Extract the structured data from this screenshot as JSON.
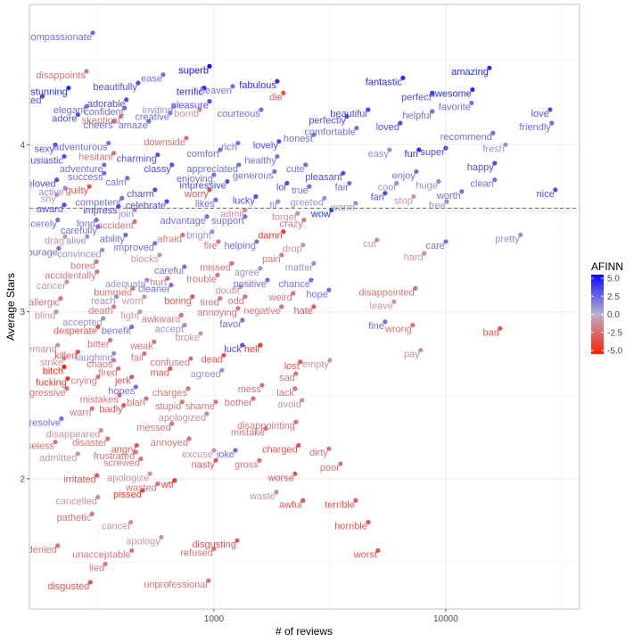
{
  "chart_data": {
    "type": "scatter",
    "xlabel": "# of reviews",
    "ylabel": "Average Stars",
    "log_x": true,
    "xlim": [
      160,
      37800
    ],
    "ylim": [
      1.22,
      4.84
    ],
    "xticks": [
      1000,
      10000
    ],
    "yticks": [
      2,
      3,
      4
    ],
    "grid": true,
    "hline": 3.62,
    "hline_color": "#e8412c",
    "legend_position": "right",
    "colorbar": {
      "title": "AFINN",
      "colors": [
        "#ff1a00",
        "#bbb0cc",
        "#0a0aff"
      ],
      "limits": [
        -5,
        5
      ],
      "ticks": [
        {
          "value": 5,
          "label": "5.0"
        },
        {
          "value": 2.5,
          "label": "2.5"
        },
        {
          "value": 0,
          "label": "0.0"
        },
        {
          "value": -2.5,
          "label": "-2.5"
        },
        {
          "value": -5,
          "label": "-5.0"
        }
      ]
    },
    "labels": [
      "compassionate",
      "superb",
      "disappoints",
      "ease",
      "beautifully",
      "fabulous",
      "fantastic",
      "amazing",
      "terrific",
      "heaven",
      "stunning",
      "awesome",
      "perfect",
      "delighted",
      "adorable",
      "pleasure",
      "die",
      "favorite",
      "elegant",
      "inviting",
      "courteous",
      "bomb",
      "skeptical",
      "creative",
      "beautiful",
      "helpful",
      "love",
      "adore",
      "cheers",
      "amaze",
      "perfectly",
      "loved",
      "friendly",
      "honest",
      "comfortable",
      "recommend",
      "confident",
      "downside",
      "sexy",
      "adventurous",
      "lovely",
      "fresh",
      "rich",
      "comfort",
      "hesitant",
      "enthusiastic",
      "easy",
      "fun",
      "super",
      "healthy",
      "charming",
      "happy",
      "calm",
      "appreciated",
      "adventure",
      "classy",
      "cute",
      "enjoy",
      "pleasant",
      "success",
      "enjoying",
      "generous",
      "huge",
      "clean",
      "beloved",
      "guilty",
      "impressive",
      "lol",
      "fair",
      "cool",
      "charm",
      "active",
      "worry",
      "nice",
      "true",
      "fan",
      "shy",
      "competent",
      "greeted",
      "worth",
      "lucky",
      "likes",
      "stop",
      "warm",
      "free",
      "award",
      "impress",
      "celebrate",
      "admit",
      "fit",
      "forget",
      "wow",
      "join",
      "advantage",
      "support",
      "crazy",
      "sincerely",
      "fond",
      "accident",
      "drop",
      "carefully",
      "bright",
      "damn",
      "pretty",
      "afraid",
      "drag",
      "alive",
      "ability",
      "cut",
      "care",
      "fire",
      "helping",
      "improved",
      "courage",
      "convinced",
      "pain",
      "hard",
      "blocks",
      "bored",
      "missed",
      "matter",
      "careful",
      "agree",
      "accidentally",
      "trouble",
      "hurt",
      "adequate",
      "positive",
      "chance",
      "cancer",
      "bummed",
      "cleaner",
      "doubt",
      "weird",
      "hope",
      "disappointed",
      "allergic",
      "reach",
      "worn",
      "boring",
      "tired",
      "odd",
      "leave",
      "negative",
      "hate",
      "blind",
      "death",
      "fight",
      "annoying",
      "awkward",
      "accepted",
      "favor",
      "fine",
      "wrong",
      "bad",
      "desperate",
      "benefit",
      "accept",
      "broke",
      "bitter",
      "weak",
      "luck",
      "hell",
      "demand",
      "pay",
      "laughing",
      "fail",
      "killed",
      "confused",
      "dead",
      "strike",
      "chaos",
      "empty",
      "lost",
      "bitch",
      "fired",
      "mad",
      "agreed",
      "sad",
      "jerk",
      "crying",
      "fucking",
      "aggressive",
      "hopes",
      "charges",
      "mess",
      "lack",
      "mistakes",
      "blah",
      "bother",
      "avoid",
      "resolve",
      "warn",
      "badly",
      "stupid",
      "shame",
      "apologized",
      "disappointing",
      "messed",
      "mistake",
      "disappeared",
      "annoyed",
      "disaster",
      "useless",
      "charged",
      "dirty",
      "angry",
      "excuse",
      "joke",
      "frustrated",
      "admitted",
      "screwed",
      "nasty",
      "gross",
      "poor",
      "irritated",
      "apologize",
      "worse",
      "wasted",
      "wtf",
      "pissed",
      "waste",
      "cancelled",
      "awful",
      "terrible",
      "pathetic",
      "horrible",
      "cancel",
      "apology",
      "disgusting",
      "denied",
      "unacceptable",
      "refused",
      "worst",
      "lied",
      "disgusted",
      "unprofessional"
    ],
    "x": [
      300,
      957,
      282,
      604,
      471,
      1875,
      6536,
      15430,
      907,
      1205,
      236,
      13041,
      8751,
      182,
      419,
      957,
      1994,
      12928,
      282,
      671,
      1599,
      868,
      397,
      648,
      4628,
      8751,
      28171,
      259,
      370,
      523,
      3742,
      6365,
      28678,
      2696,
      4124,
      15987,
      412,
      760,
      207,
      351,
      1908,
      18097,
      1270,
      1064,
      370,
      226,
      5723,
      7664,
      10000,
      1875,
      572,
      16268,
      423,
      1281,
      336,
      659,
      2488,
      7464,
      3610,
      336,
      1000,
      1825,
      9314,
      16268,
      210,
      290,
      1142,
      2067,
      3843,
      6141,
      557,
      228,
      957,
      29709,
      2578,
      5476,
      210,
      401,
      2997,
      11723,
      1516,
      1018,
      7268,
      4088,
      10089,
      226,
      387,
      626,
      1363,
      1891,
      2298,
      3219,
      455,
      932,
      1363,
      2445,
      212,
      311,
      455,
      2423,
      316,
      983,
      1994,
      21033,
      734,
      228,
      284,
      416,
      5056,
      10000,
      1045,
      1529,
      557,
      214,
      330,
      1958,
      8078,
      583,
      311,
      1194,
      2696,
      747,
      1585,
      313,
      1036,
      631,
      514,
      1701,
      2625,
      232,
      447,
      654,
      1304,
      2198,
      3135,
      7394,
      218,
      380,
      501,
      808,
      1064,
      1363,
      5982,
      1958,
      2696,
      209,
      370,
      480,
      1270,
      723,
      333,
      1327,
      5476,
      7204,
      17161,
      316,
      442,
      747,
      876,
      357,
      552,
      1327,
      1585,
      212,
      7800,
      370,
      501,
      259,
      795,
      1104,
      226,
      370,
      3162,
      2360,
      226,
      387,
      648,
      1083,
      2258,
      442,
      316,
      234,
      232,
      460,
      774,
      1613,
      2238,
      391,
      510,
      1477,
      2402,
      220,
      298,
      408,
      730,
      1018,
      932,
      2258,
      659,
      1671,
      326,
      781,
      348,
      207,
      2317,
      3135,
      464,
      1000,
      1238,
      460,
      259,
      484,
      1018,
      1571,
      3517,
      313,
      530,
      2238,
      572,
      677,
      492,
      1858,
      316,
      2423,
      4088,
      298,
      4628,
      438,
      593,
      1260,
      212,
      442,
      1000,
      5106,
      340,
      293,
      948
    ],
    "values": [
      4.67,
      4.47,
      4.44,
      4.42,
      4.37,
      4.38,
      4.4,
      4.46,
      4.34,
      4.35,
      4.34,
      4.33,
      4.31,
      4.29,
      4.27,
      4.26,
      4.31,
      4.25,
      4.23,
      4.23,
      4.21,
      4.21,
      4.17,
      4.19,
      4.21,
      4.2,
      4.21,
      4.18,
      4.14,
      4.14,
      4.17,
      4.13,
      4.13,
      4.06,
      4.1,
      4.07,
      4.22,
      4.04,
      4.0,
      4.01,
      4.02,
      4.0,
      4.01,
      3.97,
      3.95,
      3.93,
      3.97,
      3.97,
      3.98,
      3.93,
      3.94,
      3.89,
      3.8,
      3.88,
      3.88,
      3.88,
      3.88,
      3.84,
      3.83,
      3.83,
      3.82,
      3.84,
      3.78,
      3.79,
      3.79,
      3.75,
      3.78,
      3.77,
      3.77,
      3.77,
      3.73,
      3.74,
      3.73,
      3.73,
      3.75,
      3.71,
      3.7,
      3.68,
      3.68,
      3.72,
      3.69,
      3.67,
      3.69,
      3.65,
      3.66,
      3.64,
      3.63,
      3.66,
      3.61,
      3.66,
      3.59,
      3.61,
      3.61,
      3.57,
      3.57,
      3.55,
      3.55,
      3.55,
      3.54,
      3.4,
      3.51,
      3.48,
      3.48,
      3.46,
      3.46,
      3.45,
      3.45,
      3.46,
      3.43,
      3.42,
      3.42,
      3.42,
      3.41,
      3.38,
      3.37,
      3.34,
      3.35,
      3.34,
      3.3,
      3.29,
      3.29,
      3.27,
      3.26,
      3.24,
      3.22,
      3.2,
      3.19,
      3.19,
      3.19,
      3.18,
      3.14,
      3.16,
      3.15,
      3.11,
      3.13,
      3.14,
      3.08,
      3.09,
      3.09,
      3.09,
      3.08,
      3.09,
      3.06,
      3.03,
      3.03,
      3.0,
      3.03,
      3.0,
      3.02,
      2.98,
      2.96,
      2.95,
      2.94,
      2.92,
      2.9,
      2.91,
      2.91,
      2.92,
      2.87,
      2.83,
      2.82,
      2.8,
      2.8,
      2.8,
      2.77,
      2.75,
      2.75,
      2.76,
      2.72,
      2.74,
      2.72,
      2.71,
      2.71,
      2.7,
      2.67,
      2.66,
      2.66,
      2.65,
      2.63,
      2.61,
      2.61,
      2.6,
      2.54,
      2.55,
      2.54,
      2.56,
      2.54,
      2.5,
      2.48,
      2.48,
      2.47,
      2.36,
      2.42,
      2.44,
      2.46,
      2.46,
      2.39,
      2.34,
      2.33,
      2.3,
      2.29,
      2.24,
      2.24,
      2.22,
      2.2,
      2.18,
      2.2,
      2.17,
      2.17,
      2.16,
      2.15,
      2.12,
      2.11,
      2.11,
      2.09,
      2.02,
      2.03,
      2.03,
      1.97,
      1.99,
      1.93,
      1.92,
      1.89,
      1.87,
      1.87,
      1.79,
      1.74,
      1.74,
      1.65,
      1.63,
      1.6,
      1.57,
      1.58,
      1.57,
      1.49,
      1.38,
      1.39
    ],
    "afinn": [
      2,
      5,
      -2,
      2,
      3,
      4,
      4,
      4,
      4,
      2,
      4,
      4,
      3,
      3,
      3,
      3,
      -3,
      2,
      2,
      1,
      2,
      -1,
      -2,
      2,
      3,
      2,
      3,
      3,
      2,
      2,
      3,
      3,
      2,
      2,
      2,
      2,
      2,
      -2,
      3,
      2,
      3,
      1,
      2,
      2,
      -2,
      3,
      1,
      4,
      3,
      2,
      3,
      3,
      2,
      2,
      2,
      3,
      2,
      2,
      3,
      2,
      2,
      2,
      1,
      2,
      3,
      -3,
      3,
      3,
      2,
      1,
      3,
      1,
      -3,
      3,
      2,
      3,
      -1,
      2,
      1,
      2,
      3,
      2,
      -1,
      1,
      1,
      3,
      3,
      3,
      -1,
      1,
      -1,
      4,
      1,
      2,
      2,
      -2,
      2,
      2,
      -2,
      -1,
      2,
      1,
      -4,
      1,
      -2,
      -1,
      1,
      2,
      -1,
      2,
      -2,
      2,
      2,
      2,
      1,
      -2,
      -1,
      -1,
      -2,
      -2,
      1,
      2,
      1,
      -2,
      -2,
      -2,
      1,
      2,
      2,
      -1,
      -2,
      2,
      -1,
      -2,
      2,
      -2,
      -2,
      1,
      -1,
      -3,
      -2,
      -2,
      -1,
      -2,
      -3,
      -1,
      -2,
      -1,
      -2,
      -2,
      1,
      2,
      2,
      -2,
      -3,
      -3,
      2,
      1,
      -1,
      -2,
      -2,
      3,
      -4,
      -1,
      -1,
      1,
      -2,
      -3,
      -2,
      -3,
      -1,
      -2,
      -1,
      -3,
      -5,
      -2,
      -3,
      1,
      -2,
      -3,
      -2,
      -4,
      -2,
      2,
      -2,
      -2,
      -2,
      -2,
      -2,
      -2,
      -1,
      2,
      -2,
      -3,
      -2,
      -2,
      -1,
      -2,
      -2,
      -2,
      -1,
      -2,
      -2,
      -2,
      -3,
      -2,
      -3,
      -1,
      2,
      -2,
      -1,
      -2,
      -3,
      -2,
      -2,
      -3,
      -1,
      -3,
      -2,
      -4,
      -4,
      -1,
      -1,
      -3,
      -3,
      -2,
      -3,
      -1,
      -1,
      -3,
      -2,
      -2,
      -2,
      -3,
      -2,
      -3,
      -2
    ]
  }
}
